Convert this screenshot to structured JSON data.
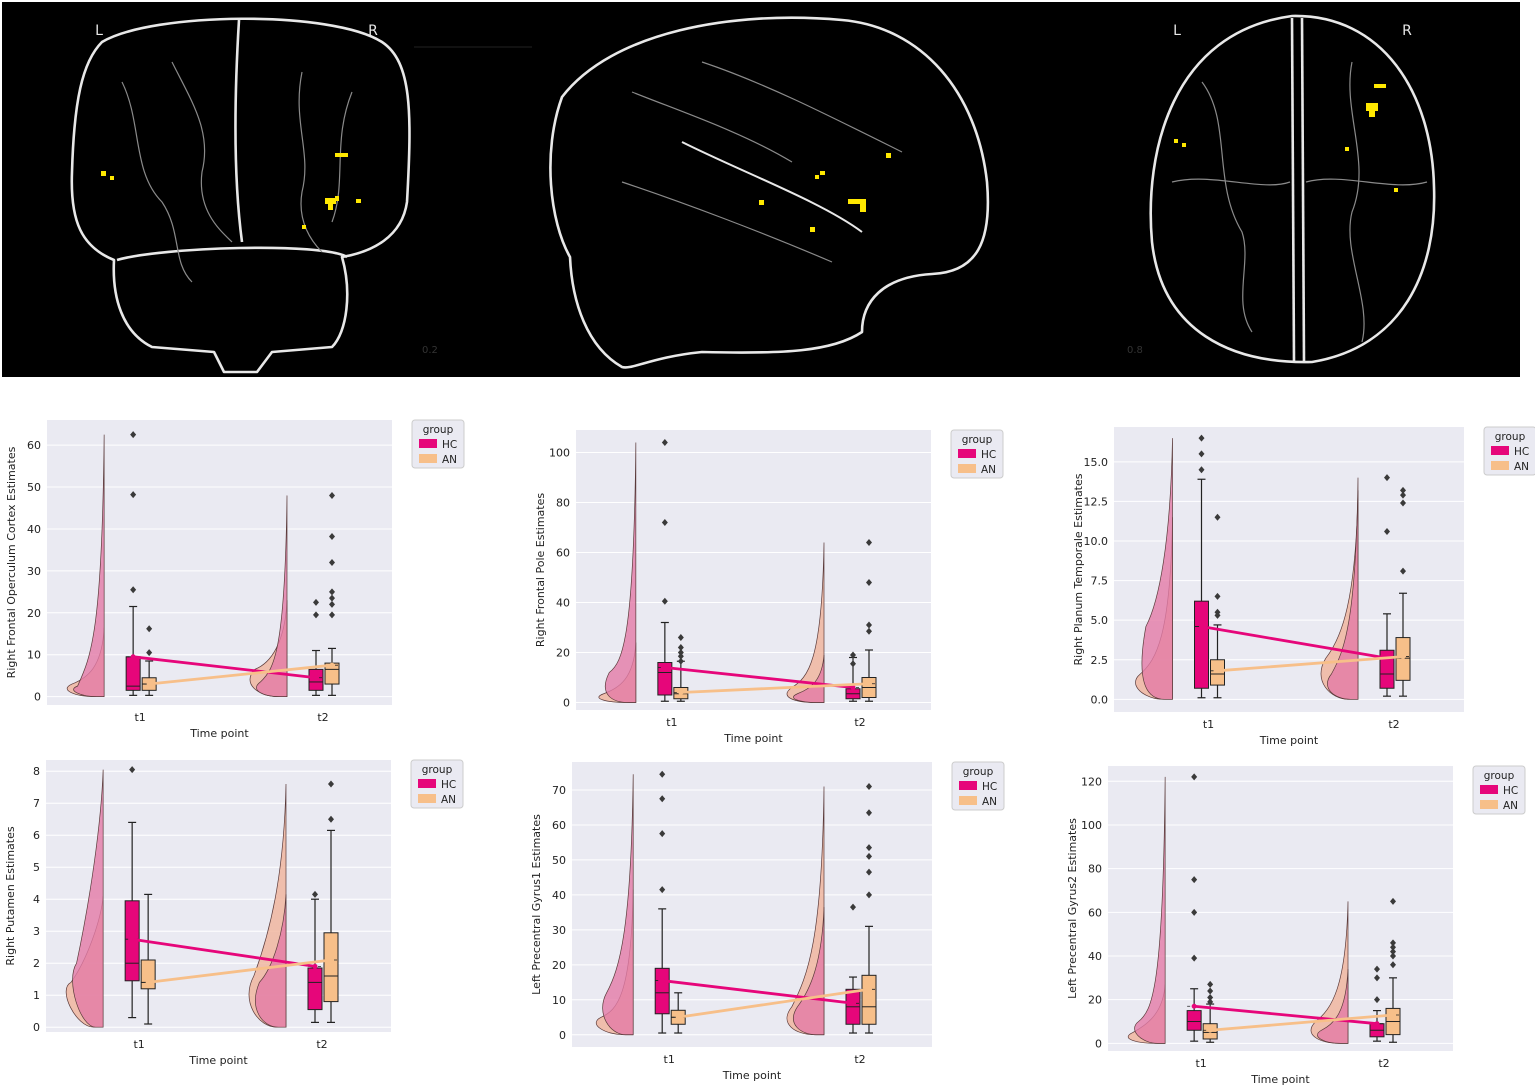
{
  "brain": {
    "frontal_left_letter": "L",
    "frontal_right_letter": "R",
    "axial_left_letter": "L",
    "axial_right_letter": "R",
    "colorbar_label_1": "0.2",
    "colorbar_label_2": "0.8",
    "blob_color": "#ffe800",
    "outline_color": "#e8e8e8"
  },
  "colors": {
    "HC": "#e6067a",
    "HC_light": "#e37aa6",
    "AN": "#f7bf89",
    "AN_light": "#f0b39a",
    "axes_bg": "#eaeaf2"
  },
  "chart_data": [
    {
      "type": "raincloud-box",
      "xlabel": "Time point",
      "ylabel": "Right Frontal Operculum Cortex Estimates",
      "categories": [
        "t1",
        "t2"
      ],
      "ylim": [
        -2,
        66
      ],
      "yticks": [
        0,
        10,
        20,
        30,
        40,
        50,
        60
      ],
      "legend": {
        "title": "group",
        "entries": [
          "HC",
          "AN"
        ],
        "placement": "right"
      },
      "series": [
        {
          "name": "HC",
          "box": [
            {
              "min": 0.3,
              "q1": 1.5,
              "median": 2.5,
              "q3": 9.5,
              "max": 21.5
            },
            {
              "min": 0.3,
              "q1": 1.5,
              "median": 3.5,
              "q3": 6.5,
              "max": 11
            }
          ],
          "mean": [
            9.5,
            4.5
          ],
          "outliers": [
            [
              62.5,
              48.2,
              25.5
            ],
            [
              22.5,
              19.5
            ]
          ],
          "violin_max": [
            62.5,
            48
          ]
        },
        {
          "name": "AN",
          "box": [
            {
              "min": 0.3,
              "q1": 1.5,
              "median": 3,
              "q3": 4.5,
              "max": 8.5
            },
            {
              "min": 0.3,
              "q1": 3,
              "median": 6.5,
              "q3": 8,
              "max": 11.5
            }
          ],
          "mean": [
            3,
            7.5
          ],
          "outliers": [
            [
              16.2,
              10.5
            ],
            [
              48,
              38.2,
              32,
              25,
              23.5,
              22,
              19.5
            ]
          ],
          "violin_max": [
            16.5,
            23
          ]
        }
      ]
    },
    {
      "type": "raincloud-box",
      "xlabel": "Time point",
      "ylabel": "Right Frontal Pole Estimates",
      "categories": [
        "t1",
        "t2"
      ],
      "ylim": [
        -3,
        109
      ],
      "yticks": [
        0,
        20,
        40,
        60,
        80,
        100
      ],
      "legend": {
        "title": "group",
        "entries": [
          "HC",
          "AN"
        ],
        "placement": "right"
      },
      "series": [
        {
          "name": "HC",
          "box": [
            {
              "min": 0.5,
              "q1": 3,
              "median": 12,
              "q3": 16,
              "max": 32
            },
            {
              "min": 0.5,
              "q1": 1.5,
              "median": 3.5,
              "q3": 5.5,
              "max": 18
            }
          ],
          "mean": [
            14,
            6
          ],
          "outliers": [
            [
              104,
              72,
              40.5
            ],
            [
              19,
              15.5
            ]
          ],
          "violin_max": [
            104,
            19
          ]
        },
        {
          "name": "AN",
          "box": [
            {
              "min": 0.5,
              "q1": 1.5,
              "median": 3.5,
              "q3": 6,
              "max": 16.5
            },
            {
              "min": 0.5,
              "q1": 2,
              "median": 6,
              "q3": 10,
              "max": 21
            }
          ],
          "mean": [
            4,
            7.5
          ],
          "outliers": [
            [
              26,
              22,
              20,
              18.5,
              16.5
            ],
            [
              64,
              48,
              31,
              28.5
            ]
          ],
          "violin_max": [
            24,
            64
          ]
        }
      ]
    },
    {
      "type": "raincloud-box",
      "xlabel": "Time point",
      "ylabel": "Right Planum Temporale Estimates",
      "categories": [
        "t1",
        "t2"
      ],
      "ylim": [
        -0.8,
        17.2
      ],
      "yticks": [
        0.0,
        2.5,
        5.0,
        7.5,
        10.0,
        12.5,
        15.0
      ],
      "legend": {
        "title": "group",
        "entries": [
          "HC",
          "AN"
        ],
        "placement": "right"
      },
      "series": [
        {
          "name": "HC",
          "box": [
            {
              "min": 0.1,
              "q1": 0.7,
              "median": 4.6,
              "q3": 6.2,
              "max": 13.9
            },
            {
              "min": 0.2,
              "q1": 0.7,
              "median": 1.6,
              "q3": 3.1,
              "max": 5.4
            }
          ],
          "mean": [
            4.6,
            2.6
          ],
          "outliers": [
            [
              16.5,
              15.5,
              14.5
            ],
            [
              14,
              10.6
            ]
          ],
          "violin_max": [
            16.5,
            14
          ]
        },
        {
          "name": "AN",
          "box": [
            {
              "min": 0.1,
              "q1": 0.9,
              "median": 1.6,
              "q3": 2.5,
              "max": 4.7
            },
            {
              "min": 0.2,
              "q1": 1.2,
              "median": 2.6,
              "q3": 3.9,
              "max": 6.7
            }
          ],
          "mean": [
            1.8,
            2.7
          ],
          "outliers": [
            [
              11.5,
              6.5,
              5.5,
              5.3
            ],
            [
              13.2,
              12.9,
              12.4,
              8.1
            ]
          ],
          "violin_max": [
            11.5,
            13.2
          ]
        }
      ]
    },
    {
      "type": "raincloud-box",
      "xlabel": "Time point",
      "ylabel": "Right Putamen Estimates",
      "categories": [
        "t1",
        "t2"
      ],
      "ylim": [
        -0.15,
        8.35
      ],
      "yticks": [
        0,
        1,
        2,
        3,
        4,
        5,
        6,
        7,
        8
      ],
      "legend": {
        "title": "group",
        "entries": [
          "HC",
          "AN"
        ],
        "placement": "right"
      },
      "series": [
        {
          "name": "HC",
          "box": [
            {
              "min": 0.3,
              "q1": 1.45,
              "median": 2.0,
              "q3": 3.95,
              "max": 6.4
            },
            {
              "min": 0.15,
              "q1": 0.55,
              "median": 1.4,
              "q3": 1.85,
              "max": 4.0
            }
          ],
          "mean": [
            2.75,
            1.9
          ],
          "outliers": [
            [
              8.05
            ],
            [
              4.15
            ]
          ],
          "violin_max": [
            8.05,
            4.15
          ]
        },
        {
          "name": "AN",
          "box": [
            {
              "min": 0.1,
              "q1": 1.2,
              "median": 1.4,
              "q3": 2.1,
              "max": 4.15
            },
            {
              "min": 0.15,
              "q1": 0.8,
              "median": 1.6,
              "q3": 2.95,
              "max": 6.15
            }
          ],
          "mean": [
            1.4,
            2.1
          ],
          "outliers": [
            [],
            [
              7.6,
              6.5
            ]
          ],
          "violin_max": [
            4.1,
            7.6
          ]
        }
      ]
    },
    {
      "type": "raincloud-box",
      "xlabel": "Time point",
      "ylabel": "Left Precentral Gyrus1 Estimates",
      "categories": [
        "t1",
        "t2"
      ],
      "ylim": [
        -3.5,
        78
      ],
      "yticks": [
        0,
        10,
        20,
        30,
        40,
        50,
        60,
        70
      ],
      "legend": {
        "title": "group",
        "entries": [
          "HC",
          "AN"
        ],
        "placement": "right"
      },
      "series": [
        {
          "name": "HC",
          "box": [
            {
              "min": 0.5,
              "q1": 6,
              "median": 12,
              "q3": 19,
              "max": 36
            },
            {
              "min": 0.5,
              "q1": 3,
              "median": 8,
              "q3": 13,
              "max": 16.5
            }
          ],
          "mean": [
            15.5,
            9
          ],
          "outliers": [
            [
              74.5,
              67.5,
              57.5,
              41.5
            ],
            [
              36.5
            ]
          ],
          "violin_max": [
            74.5,
            36.5
          ]
        },
        {
          "name": "AN",
          "box": [
            {
              "min": 0.5,
              "q1": 3,
              "median": 5,
              "q3": 7,
              "max": 12
            },
            {
              "min": 0.5,
              "q1": 3,
              "median": 8,
              "q3": 17,
              "max": 31
            }
          ],
          "mean": [
            5,
            13
          ],
          "outliers": [
            [],
            [
              71,
              63.5,
              53.5,
              51,
              46.5,
              40
            ]
          ],
          "violin_max": [
            41.5,
            71
          ]
        }
      ]
    },
    {
      "type": "raincloud-box",
      "xlabel": "Time point",
      "ylabel": "Left Precentral Gyrus2 Estimates",
      "categories": [
        "t1",
        "t2"
      ],
      "ylim": [
        -3.5,
        127
      ],
      "yticks": [
        0,
        20,
        40,
        60,
        80,
        100,
        120
      ],
      "legend": {
        "title": "group",
        "entries": [
          "HC",
          "AN"
        ],
        "placement": "right"
      },
      "series": [
        {
          "name": "HC",
          "box": [
            {
              "min": 1,
              "q1": 6,
              "median": 10,
              "q3": 15,
              "max": 25
            },
            {
              "min": 1,
              "q1": 3,
              "median": 6,
              "q3": 9,
              "max": 15
            }
          ],
          "mean": [
            17,
            9
          ],
          "outliers": [
            [
              122,
              75,
              60,
              39
            ],
            [
              34,
              30,
              20
            ]
          ],
          "violin_max": [
            122,
            34
          ]
        },
        {
          "name": "AN",
          "box": [
            {
              "min": 0.5,
              "q1": 2,
              "median": 5,
              "q3": 9,
              "max": 18
            },
            {
              "min": 0.5,
              "q1": 4,
              "median": 10,
              "q3": 16,
              "max": 30
            }
          ],
          "mean": [
            6,
            13
          ],
          "outliers": [
            [
              27,
              24,
              21,
              19
            ],
            [
              65,
              46,
              44,
              42,
              40,
              36
            ]
          ],
          "violin_max": [
            27,
            65
          ]
        }
      ]
    }
  ]
}
